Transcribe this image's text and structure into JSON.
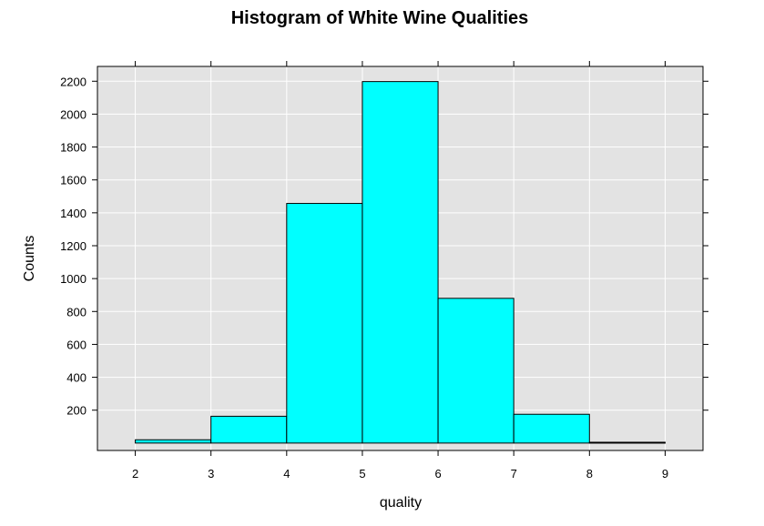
{
  "chart_data": {
    "type": "bar",
    "title": "Histogram of White Wine Qualities",
    "xlabel": "quality",
    "ylabel": "Counts",
    "bins": [
      {
        "from": 2,
        "to": 3,
        "count": 20
      },
      {
        "from": 3,
        "to": 4,
        "count": 163
      },
      {
        "from": 4,
        "to": 5,
        "count": 1457
      },
      {
        "from": 5,
        "to": 6,
        "count": 2198
      },
      {
        "from": 6,
        "to": 7,
        "count": 880
      },
      {
        "from": 7,
        "to": 8,
        "count": 175
      },
      {
        "from": 8,
        "to": 9,
        "count": 5
      }
    ],
    "xticks": [
      2,
      3,
      4,
      5,
      6,
      7,
      8,
      9
    ],
    "yticks": [
      200,
      400,
      600,
      800,
      1000,
      1200,
      1400,
      1600,
      1800,
      2000,
      2200
    ],
    "xlim": [
      1.5,
      9.5
    ],
    "ylim": [
      -45,
      2290
    ],
    "grid": true,
    "colors": {
      "bar_fill": "#00ffff",
      "bar_stroke": "#000000",
      "panel_bg": "#e3e3e3",
      "grid": "#ffffff"
    }
  }
}
